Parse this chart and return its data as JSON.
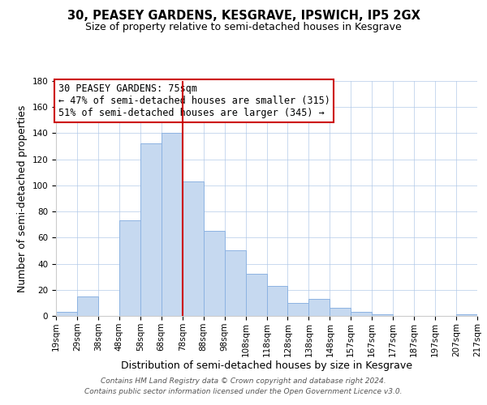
{
  "title": "30, PEASEY GARDENS, KESGRAVE, IPSWICH, IP5 2GX",
  "subtitle": "Size of property relative to semi-detached houses in Kesgrave",
  "xlabel": "Distribution of semi-detached houses by size in Kesgrave",
  "ylabel": "Number of semi-detached properties",
  "bar_labels": [
    "19sqm",
    "29sqm",
    "38sqm",
    "48sqm",
    "58sqm",
    "68sqm",
    "78sqm",
    "88sqm",
    "98sqm",
    "108sqm",
    "118sqm",
    "128sqm",
    "138sqm",
    "148sqm",
    "157sqm",
    "167sqm",
    "177sqm",
    "187sqm",
    "197sqm",
    "207sqm",
    "217sqm"
  ],
  "bar_values": [
    3,
    15,
    0,
    73,
    132,
    140,
    103,
    65,
    50,
    32,
    23,
    10,
    13,
    6,
    3,
    1,
    0,
    0,
    0,
    1
  ],
  "bar_color": "#c6d9f0",
  "bar_edge_color": "#8db3e2",
  "vline_x": 6,
  "vline_color": "#cc0000",
  "ylim": [
    0,
    180
  ],
  "yticks": [
    0,
    20,
    40,
    60,
    80,
    100,
    120,
    140,
    160,
    180
  ],
  "annotation_title": "30 PEASEY GARDENS: 75sqm",
  "annotation_line1": "← 47% of semi-detached houses are smaller (315)",
  "annotation_line2": "51% of semi-detached houses are larger (345) →",
  "annotation_box_edge": "#cc0000",
  "footer_line1": "Contains HM Land Registry data © Crown copyright and database right 2024.",
  "footer_line2": "Contains public sector information licensed under the Open Government Licence v3.0.",
  "title_fontsize": 10.5,
  "subtitle_fontsize": 9,
  "axis_label_fontsize": 9,
  "tick_fontsize": 7.5,
  "annotation_fontsize": 8.5,
  "footer_fontsize": 6.5
}
